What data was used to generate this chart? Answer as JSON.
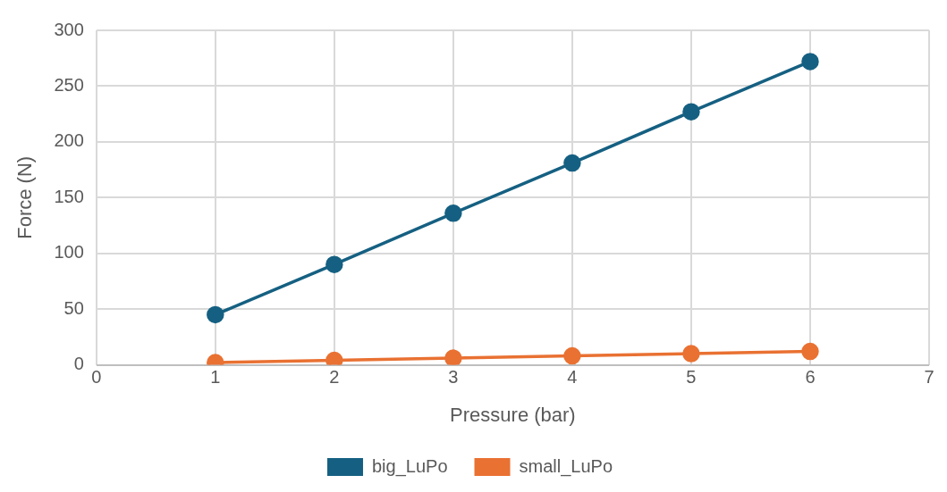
{
  "chart_data": {
    "type": "line",
    "xlabel": "Pressure (bar)",
    "ylabel": "Force (N)",
    "x": [
      1,
      2,
      3,
      4,
      5,
      6
    ],
    "series": [
      {
        "name": "big_LuPo",
        "color": "#156082",
        "values": [
          45,
          90,
          136,
          181,
          227,
          272
        ]
      },
      {
        "name": "small_LuPo",
        "color": "#e97132",
        "values": [
          2,
          4,
          6,
          8,
          10,
          12
        ]
      }
    ],
    "xlim": [
      0,
      7
    ],
    "xticks": [
      0,
      1,
      2,
      3,
      4,
      5,
      6,
      7
    ],
    "ylim": [
      0,
      300
    ],
    "yticks": [
      0,
      50,
      100,
      150,
      200,
      250,
      300
    ],
    "grid": true,
    "legend": "bottom",
    "marker": "circle",
    "line_style": "solid"
  }
}
